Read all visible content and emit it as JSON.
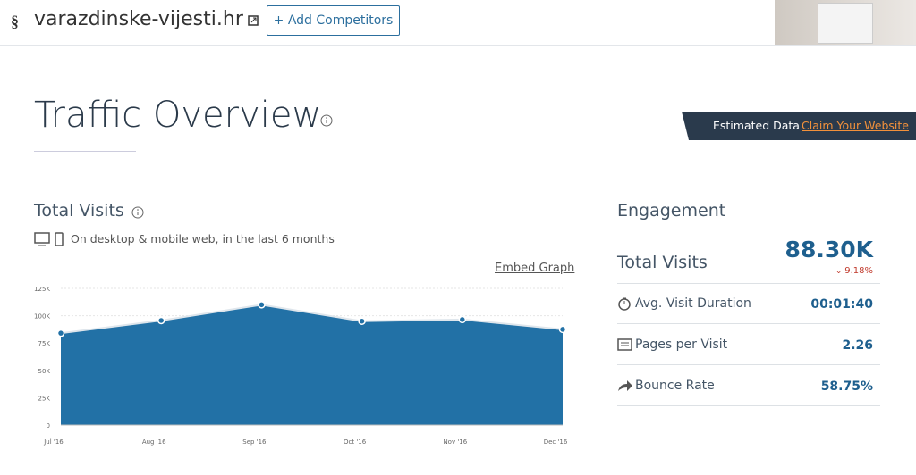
{
  "header": {
    "site": "varazdinske-vijesti.hr",
    "add_button": "+ Add Competitors"
  },
  "title": "Traffic Overview",
  "banner": {
    "label": "Estimated Data",
    "link": "Claim Your Website"
  },
  "visits_panel": {
    "title": "Total Visits",
    "subtitle": "On desktop & mobile web, in the last 6 months",
    "embed": "Embed Graph"
  },
  "chart_data": {
    "type": "area",
    "color": "#2271a6",
    "categories": [
      "Jul '16",
      "Aug '16",
      "Sep '16",
      "Oct '16",
      "Nov '16",
      "Dec '16"
    ],
    "values": [
      84000,
      95600,
      110000,
      95000,
      96500,
      87500
    ],
    "ylim": [
      0,
      125000
    ],
    "yticks": [
      0,
      {
        "value": 25000,
        "label": "25K"
      },
      {
        "value": 50000,
        "label": "50K"
      },
      {
        "value": 75000,
        "label": "75K"
      },
      {
        "value": 100000,
        "label": "100K"
      },
      {
        "value": 125000,
        "label": "125K"
      }
    ],
    "grid": true
  },
  "engagement": {
    "title": "Engagement",
    "total_visits": {
      "name": "Total Visits",
      "value": "88.30K",
      "change": "9.18%"
    },
    "metrics": [
      {
        "name": "Avg. Visit Duration",
        "value": "00:01:40"
      },
      {
        "name": "Pages per Visit",
        "value": "2.26"
      },
      {
        "name": "Bounce Rate",
        "value": "58.75%"
      }
    ]
  }
}
